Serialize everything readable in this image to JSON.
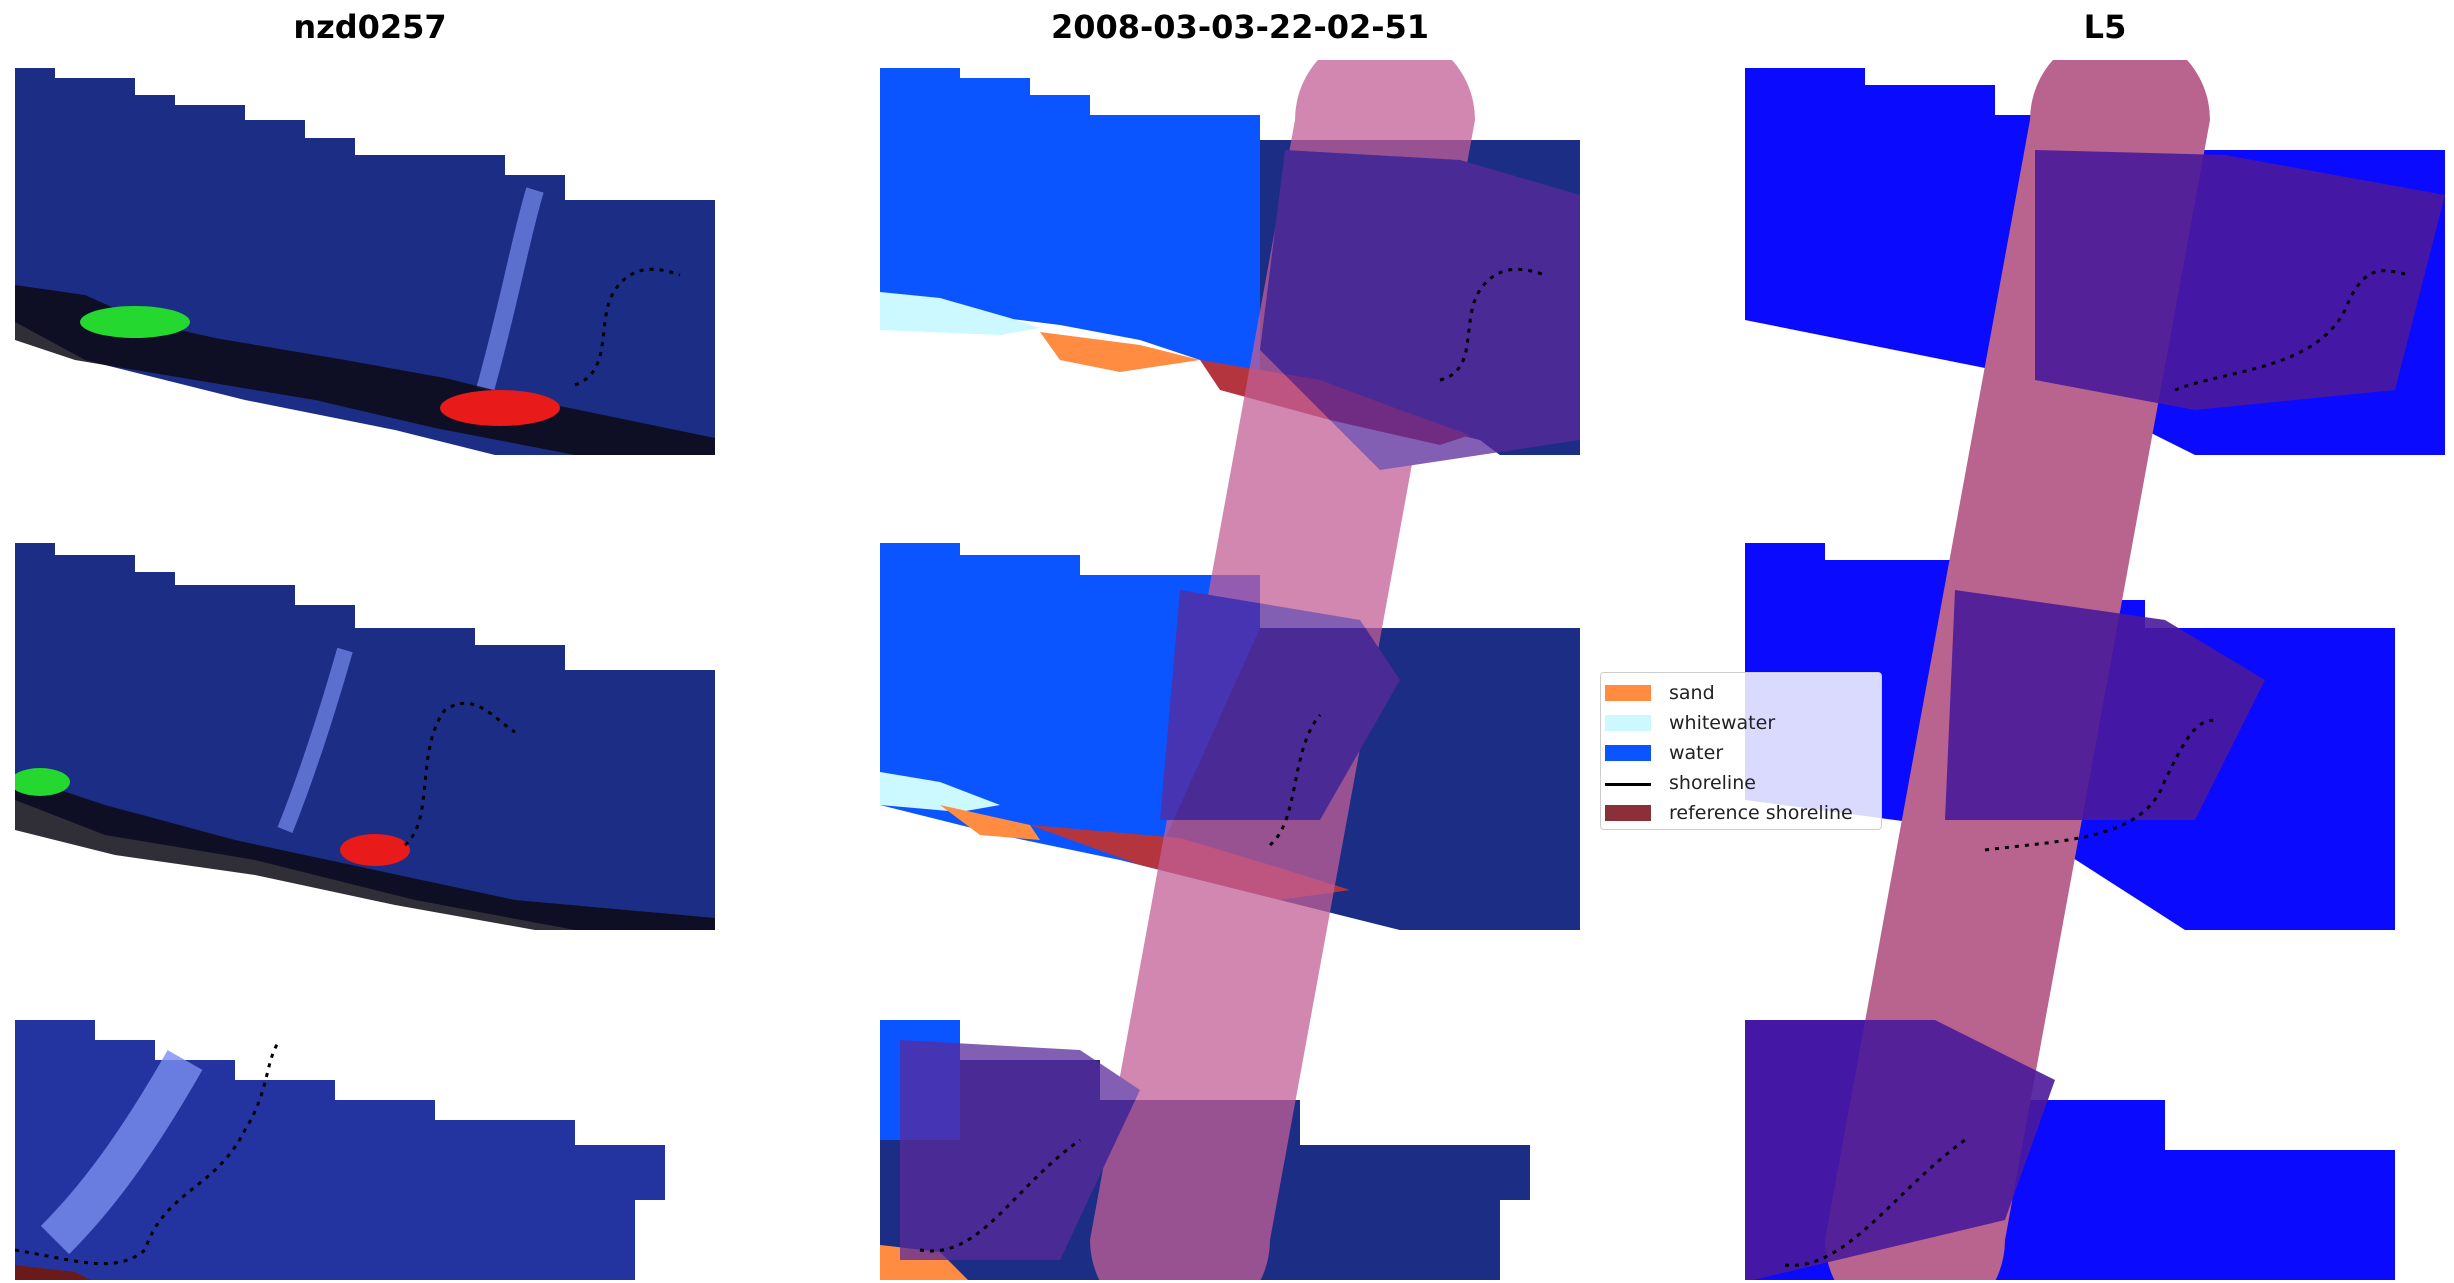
{
  "panels": [
    {
      "title": "nzd0257"
    },
    {
      "title": "2008-03-03-22-02-51"
    },
    {
      "title": "L5"
    }
  ],
  "legend": {
    "items": [
      {
        "label": "sand",
        "color": "#ff8c40"
      },
      {
        "label": "whitewater",
        "color": "#ccf8ff"
      },
      {
        "label": "water",
        "color": "#0a55ff"
      },
      {
        "label": "shoreline",
        "color": "#000000",
        "kind": "line"
      },
      {
        "label": "reference shoreline",
        "color": "#8b2f38"
      }
    ]
  },
  "colors": {
    "rgb_water": "#1a2b85",
    "classified_water": "#0a55ff",
    "l5_water": "#0a0aff",
    "buffer": "#b8648f",
    "buffer_dark": "#4a1a9a"
  }
}
